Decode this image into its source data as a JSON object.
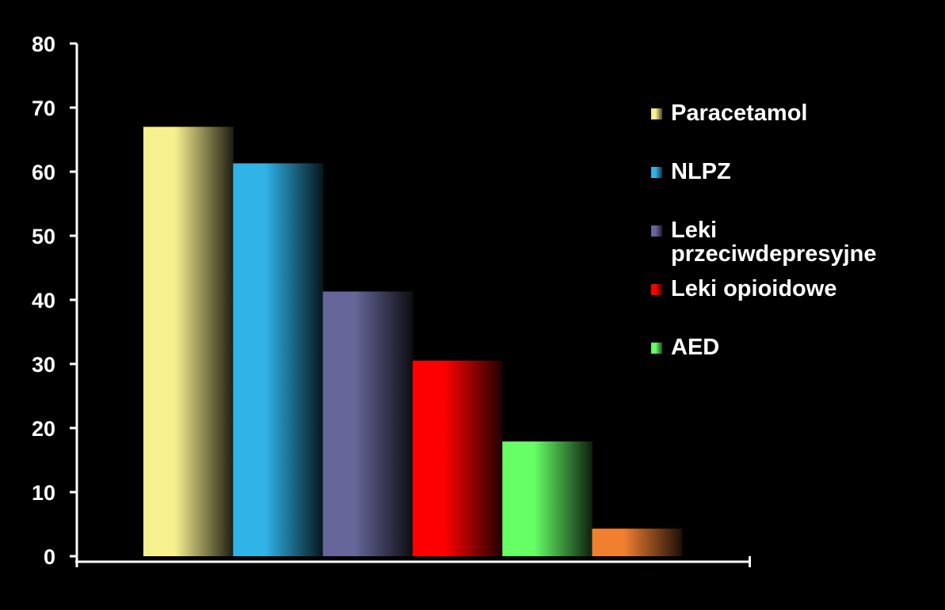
{
  "chart_data": {
    "type": "bar",
    "categories": [
      "Paracetamol",
      "NLPZ",
      "Leki przeciwdepresyjne",
      "Leki opioidowe",
      "AED",
      ""
    ],
    "values": [
      67,
      61.3,
      41.3,
      30.5,
      17.9,
      4.3
    ],
    "colors": [
      "#f6f08e",
      "#30b4e8",
      "#66669a",
      "#ff0000",
      "#66ff66",
      "#f08030"
    ],
    "ylim": [
      0,
      80
    ],
    "yticks": [
      "0",
      "10",
      "20",
      "30",
      "40",
      "50",
      "60",
      "70",
      "80"
    ],
    "grid": false,
    "legend_position": "right",
    "legend": [
      {
        "label": "Paracetamol",
        "color": "#f6f08e"
      },
      {
        "label": "NLPZ",
        "color": "#30b4e8"
      },
      {
        "label": "Leki przeciwdepresyjne",
        "color": "#66669a"
      },
      {
        "label": "Leki opioidowe",
        "color": "#ff0000"
      },
      {
        "label": "AED",
        "color": "#66ff66"
      }
    ]
  }
}
